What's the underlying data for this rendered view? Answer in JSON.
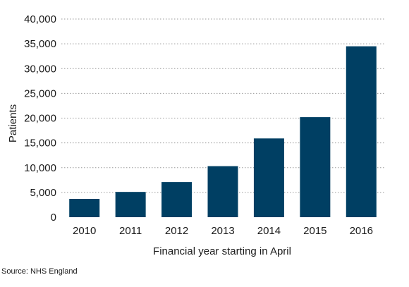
{
  "chart_data": {
    "type": "bar",
    "title": "",
    "xlabel": "Financial year starting in April",
    "ylabel": "Patients",
    "categories": [
      "2010",
      "2011",
      "2012",
      "2013",
      "2014",
      "2015",
      "2016"
    ],
    "values": [
      3700,
      5100,
      7100,
      10300,
      15900,
      20200,
      34500
    ],
    "ylim": [
      0,
      40000
    ],
    "yticks": [
      0,
      5000,
      10000,
      15000,
      20000,
      25000,
      30000,
      35000,
      40000
    ],
    "ytick_labels": [
      "0",
      "5,000",
      "10,000",
      "15,000",
      "20,000",
      "25,000",
      "30,000",
      "35,000",
      "40,000"
    ],
    "grid": "horizontal dotted",
    "bar_color": "#003f63",
    "grid_color": "#9a9a9a"
  },
  "source": "Source: NHS England"
}
